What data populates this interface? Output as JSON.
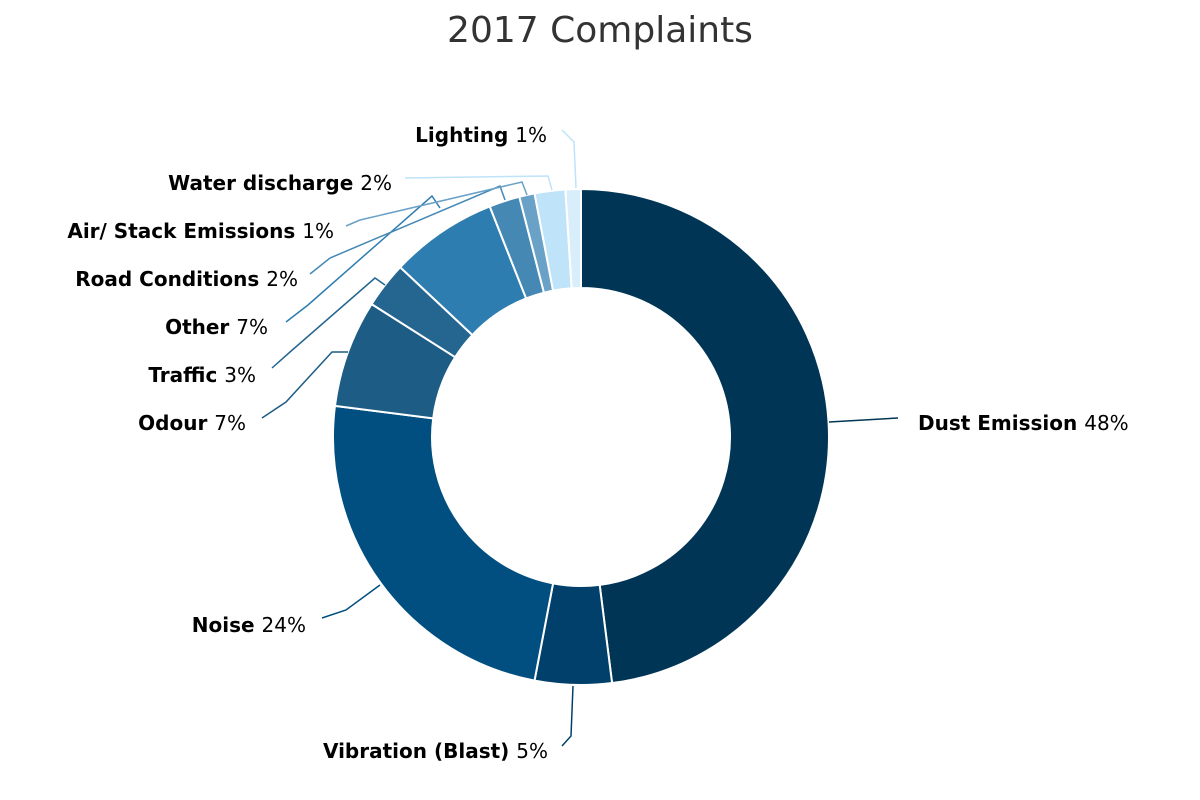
{
  "chart_data": {
    "type": "pie",
    "title": "2017 Complaints",
    "donut": true,
    "slices": [
      {
        "label": "Dust Emission",
        "value": 48,
        "display": "48%",
        "color": "#003556"
      },
      {
        "label": "Vibration (Blast)",
        "value": 5,
        "display": "5%",
        "color": "#00406a"
      },
      {
        "label": "Noise",
        "value": 24,
        "display": "24%",
        "color": "#004f80"
      },
      {
        "label": "Odour",
        "value": 7,
        "display": "7%",
        "color": "#1d5c84"
      },
      {
        "label": "Traffic",
        "value": 3,
        "display": "3%",
        "color": "#256691"
      },
      {
        "label": "Other",
        "value": 7,
        "display": "7%",
        "color": "#2e7db0"
      },
      {
        "label": "Road Conditions",
        "value": 2,
        "display": "2%",
        "color": "#4588b4"
      },
      {
        "label": "Air/ Stack Emissions",
        "value": 1,
        "display": "1%",
        "color": "#6aa1c7"
      },
      {
        "label": "Water discharge",
        "value": 2,
        "display": "2%",
        "color": "#bfe3f9"
      },
      {
        "label": "Lighting",
        "value": 1,
        "display": "1%",
        "color": "#d9eefb"
      }
    ]
  }
}
